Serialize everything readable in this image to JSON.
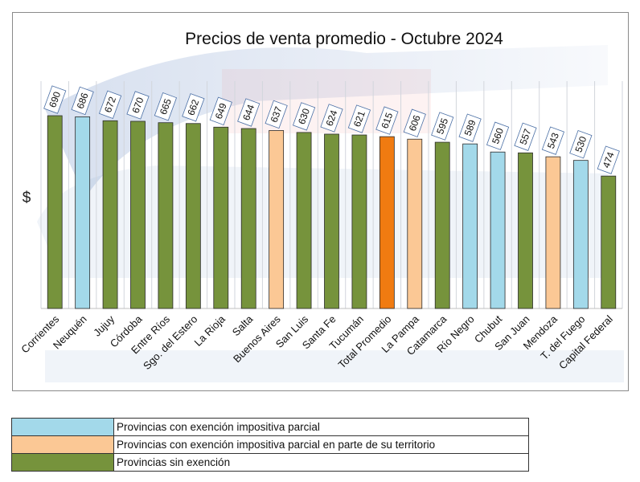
{
  "chart_data": {
    "type": "bar",
    "title": "Precios de venta promedio - Octubre 2024",
    "ylabel": "$",
    "xlabel": "",
    "ylim": [
      0,
      700
    ],
    "grid": true,
    "categories": [
      "Corrientes",
      "Neuquén",
      "Jujuy",
      "Córdoba",
      "Entre Ríos",
      "Sgo. del Estero",
      "La Rioja",
      "Salta",
      "Buenos Aires",
      "San Luis",
      "Santa Fe",
      "Tucumán",
      "Total Promedio",
      "La Pampa",
      "Catamarca",
      "Río Negro",
      "Chubut",
      "San Juan",
      "Mendoza",
      "T. del Fuego",
      "Capital Federal"
    ],
    "values": [
      690,
      686,
      672,
      670,
      665,
      662,
      649,
      644,
      637,
      630,
      624,
      621,
      615,
      606,
      595,
      589,
      560,
      557,
      543,
      530,
      474
    ],
    "groups": [
      "none",
      "partial",
      "none",
      "none",
      "none",
      "none",
      "none",
      "none",
      "partial_territory",
      "none",
      "none",
      "none",
      "average",
      "partial_territory",
      "none",
      "partial",
      "partial",
      "none",
      "partial_territory",
      "partial",
      "none"
    ],
    "colors": {
      "partial": "#a3d9ea",
      "partial_territory": "#fbc895",
      "none": "#76933c",
      "average": "#f07b11"
    },
    "legend": [
      {
        "group": "partial",
        "label": "Provincias con exención impositiva parcial"
      },
      {
        "group": "partial_territory",
        "label": "Provincias con exención impositiva parcial en parte de su territorio"
      },
      {
        "group": "none",
        "label": "Provincias sin exención"
      }
    ],
    "legend_placement": "bottom"
  }
}
